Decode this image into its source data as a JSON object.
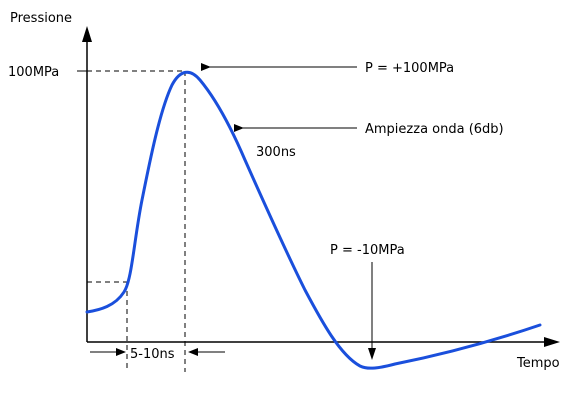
{
  "chart_data": {
    "type": "line",
    "title": "",
    "ylabel": "Pressione",
    "xlabel": "Tempo",
    "y_tick_label": "100MPa",
    "grid": false,
    "legend": "none",
    "line_color": "#1a4fdc",
    "axis_color": "#000000",
    "annotations": {
      "peak": "P = +100MPa",
      "amplitude": "Ampiezza onda (6db)",
      "duration": "300ns",
      "trough": "P = -10MPa",
      "rise_time": "5-10ns"
    }
  }
}
